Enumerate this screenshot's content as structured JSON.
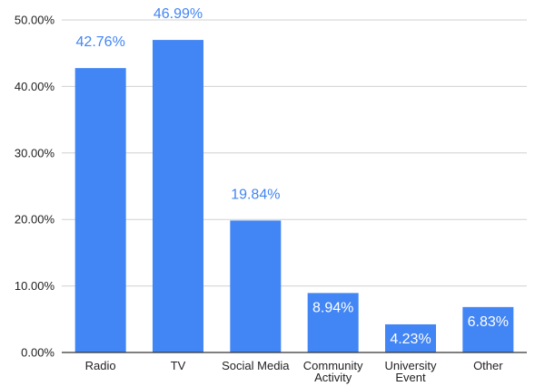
{
  "chart_data": {
    "type": "bar",
    "title": "",
    "xlabel": "",
    "ylabel": "",
    "categories": [
      [
        "Radio"
      ],
      [
        "TV"
      ],
      [
        "Social Media"
      ],
      [
        "Community",
        "Activity"
      ],
      [
        "University",
        "Event"
      ],
      [
        "Other"
      ]
    ],
    "values": [
      42.76,
      46.99,
      19.84,
      8.94,
      4.23,
      6.83
    ],
    "data_labels": [
      "42.76%",
      "46.99%",
      "19.84%",
      "8.94%",
      "4.23%",
      "6.83%"
    ],
    "ylim": [
      0,
      50
    ],
    "yticks": [
      0,
      10,
      20,
      30,
      40,
      50
    ],
    "ytick_labels": [
      "0.00%",
      "10.00%",
      "20.00%",
      "30.00%",
      "40.00%",
      "50.00%"
    ],
    "grid": true,
    "legend": "none",
    "colors": {
      "bar": "#4285f4",
      "label_outside": "#4285f4",
      "label_inside": "#ffffff"
    }
  }
}
